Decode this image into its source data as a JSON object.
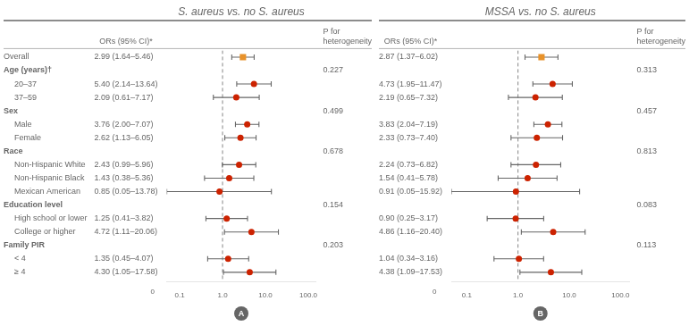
{
  "chart_data": [
    {
      "type": "forest",
      "title": "S. aureus vs. no S. aureus",
      "categories": [
        "Overall",
        "Age (years)†",
        "20–37",
        "37–59",
        "Sex",
        "Male",
        "Female",
        "Race",
        "Non-Hispanic White",
        "Non-Hispanic Black",
        "Mexican American",
        "Education level",
        "High school or lower",
        "College or higher",
        "Family PIR",
        "< 4",
        "≥ 4"
      ],
      "series": [
        {
          "marker": "square",
          "color": "#E8922A",
          "values": [
            2.99,
            null,
            null,
            null,
            null,
            null,
            null,
            null,
            null,
            null,
            null,
            null,
            null,
            null,
            null,
            null,
            null
          ],
          "ci_low": [
            1.64,
            null,
            null,
            null,
            null,
            null,
            null,
            null,
            null,
            null,
            null,
            null,
            null,
            null,
            null,
            null,
            null
          ],
          "ci_high": [
            5.46,
            null,
            null,
            null,
            null,
            null,
            null,
            null,
            null,
            null,
            null,
            null,
            null,
            null,
            null,
            null,
            null
          ],
          "value_labels": [
            "2.99 (1.64–5.46)",
            null,
            null,
            null,
            null,
            null,
            null,
            null,
            null,
            null,
            null,
            null,
            null,
            null,
            null,
            null,
            null
          ]
        },
        {
          "marker": "circle",
          "color": "#CC2200",
          "values": [
            null,
            null,
            5.4,
            2.09,
            null,
            3.76,
            2.62,
            null,
            2.43,
            1.43,
            0.85,
            null,
            1.25,
            4.72,
            null,
            1.35,
            4.3
          ],
          "ci_low": [
            null,
            null,
            2.14,
            0.61,
            null,
            2.0,
            1.13,
            null,
            0.99,
            0.38,
            0.05,
            null,
            0.41,
            1.11,
            null,
            0.45,
            1.05
          ],
          "ci_high": [
            null,
            null,
            13.64,
            7.17,
            null,
            7.07,
            6.05,
            null,
            5.96,
            5.36,
            13.78,
            null,
            3.82,
            20.06,
            null,
            4.07,
            17.58
          ],
          "value_labels": [
            null,
            null,
            "5.40 (2.14–13.64)",
            "2.09 (0.61–7.17)",
            null,
            "3.76 (2.00–7.07)",
            "2.62 (1.13–6.05)",
            null,
            "2.43 (0.99–5.96)",
            "1.43 (0.38–5.36)",
            "0.85 (0.05–13.78)",
            null,
            "1.25 (0.41–3.82)",
            "4.72 (1.11–20.06)",
            null,
            "1.35 (0.45–4.07)",
            "4.30 (1.05–17.58)"
          ]
        }
      ],
      "p_values": [
        null,
        0.227,
        null,
        null,
        0.499,
        null,
        null,
        0.678,
        null,
        null,
        null,
        0.154,
        null,
        null,
        0.203,
        null,
        null
      ],
      "column_headers": [
        "ORs (95% CI)*",
        "P for\nheterogeneity"
      ],
      "annotations": [
        "0",
        "A"
      ],
      "reference_line": 1,
      "log": "x",
      "xlim": [
        0.05,
        150
      ],
      "xticks": [
        0.1,
        {
          "value": 1,
          "label": "1.0"
        },
        {
          "value": 10,
          "label": "10.0"
        },
        {
          "value": 100,
          "label": "100.0"
        }
      ],
      "grid": false,
      "tick_labels": "x"
    },
    {
      "type": "forest",
      "title": "MSSA vs. no S. aureus",
      "categories": [
        null,
        null,
        null,
        null,
        null,
        null,
        null,
        null,
        null,
        null,
        null,
        null,
        null,
        null,
        null,
        null,
        null
      ],
      "series": [
        {
          "marker": "square",
          "color": "#E8922A",
          "values": [
            2.87,
            null,
            null,
            null,
            null,
            null,
            null,
            null,
            null,
            null,
            null,
            null,
            null,
            null,
            null,
            null,
            null
          ],
          "ci_low": [
            1.37,
            null,
            null,
            null,
            null,
            null,
            null,
            null,
            null,
            null,
            null,
            null,
            null,
            null,
            null,
            null,
            null
          ],
          "ci_high": [
            6.02,
            null,
            null,
            null,
            null,
            null,
            null,
            null,
            null,
            null,
            null,
            null,
            null,
            null,
            null,
            null,
            null
          ],
          "value_labels": [
            "2.87 (1.37–6.02)",
            null,
            null,
            null,
            null,
            null,
            null,
            null,
            null,
            null,
            null,
            null,
            null,
            null,
            null,
            null,
            null
          ]
        },
        {
          "marker": "circle",
          "color": "#CC2200",
          "values": [
            null,
            null,
            4.73,
            2.19,
            null,
            3.83,
            2.33,
            null,
            2.24,
            1.54,
            0.91,
            null,
            0.9,
            4.86,
            null,
            1.04,
            4.38
          ],
          "ci_low": [
            null,
            null,
            1.95,
            0.65,
            null,
            2.04,
            0.73,
            null,
            0.73,
            0.41,
            0.05,
            null,
            0.25,
            1.16,
            null,
            0.34,
            1.09
          ],
          "ci_high": [
            null,
            null,
            11.47,
            7.32,
            null,
            7.19,
            7.4,
            null,
            6.82,
            5.78,
            15.92,
            null,
            3.17,
            20.4,
            null,
            3.16,
            17.53
          ],
          "value_labels": [
            null,
            null,
            "4.73 (1.95–11.47)",
            "2.19 (0.65–7.32)",
            null,
            "3.83 (2.04–7.19)",
            "2.33 (0.73–7.40)",
            null,
            "2.24 (0.73–6.82)",
            "1.54 (0.41–5.78)",
            "0.91 (0.05–15.92)",
            null,
            "0.90 (0.25–3.17)",
            "4.86 (1.16–20.40)",
            null,
            "1.04 (0.34–3.16)",
            "4.38 (1.09–17.53)"
          ]
        }
      ],
      "p_values": [
        null,
        0.313,
        null,
        null,
        0.457,
        null,
        null,
        0.813,
        null,
        null,
        null,
        0.083,
        null,
        null,
        0.113,
        null,
        null
      ],
      "column_headers": [
        "ORs (95% CI)*",
        "P for\nheterogeneity"
      ],
      "annotations": [
        "0",
        "B"
      ],
      "reference_line": 1,
      "log": "x",
      "xlim": [
        0.05,
        150
      ],
      "xticks": [
        0.1,
        {
          "value": 1,
          "label": "1.0"
        },
        {
          "value": 10,
          "label": "10.0"
        },
        {
          "value": 100,
          "label": "100.0"
        }
      ],
      "grid": false,
      "tick_labels": "x"
    }
  ]
}
